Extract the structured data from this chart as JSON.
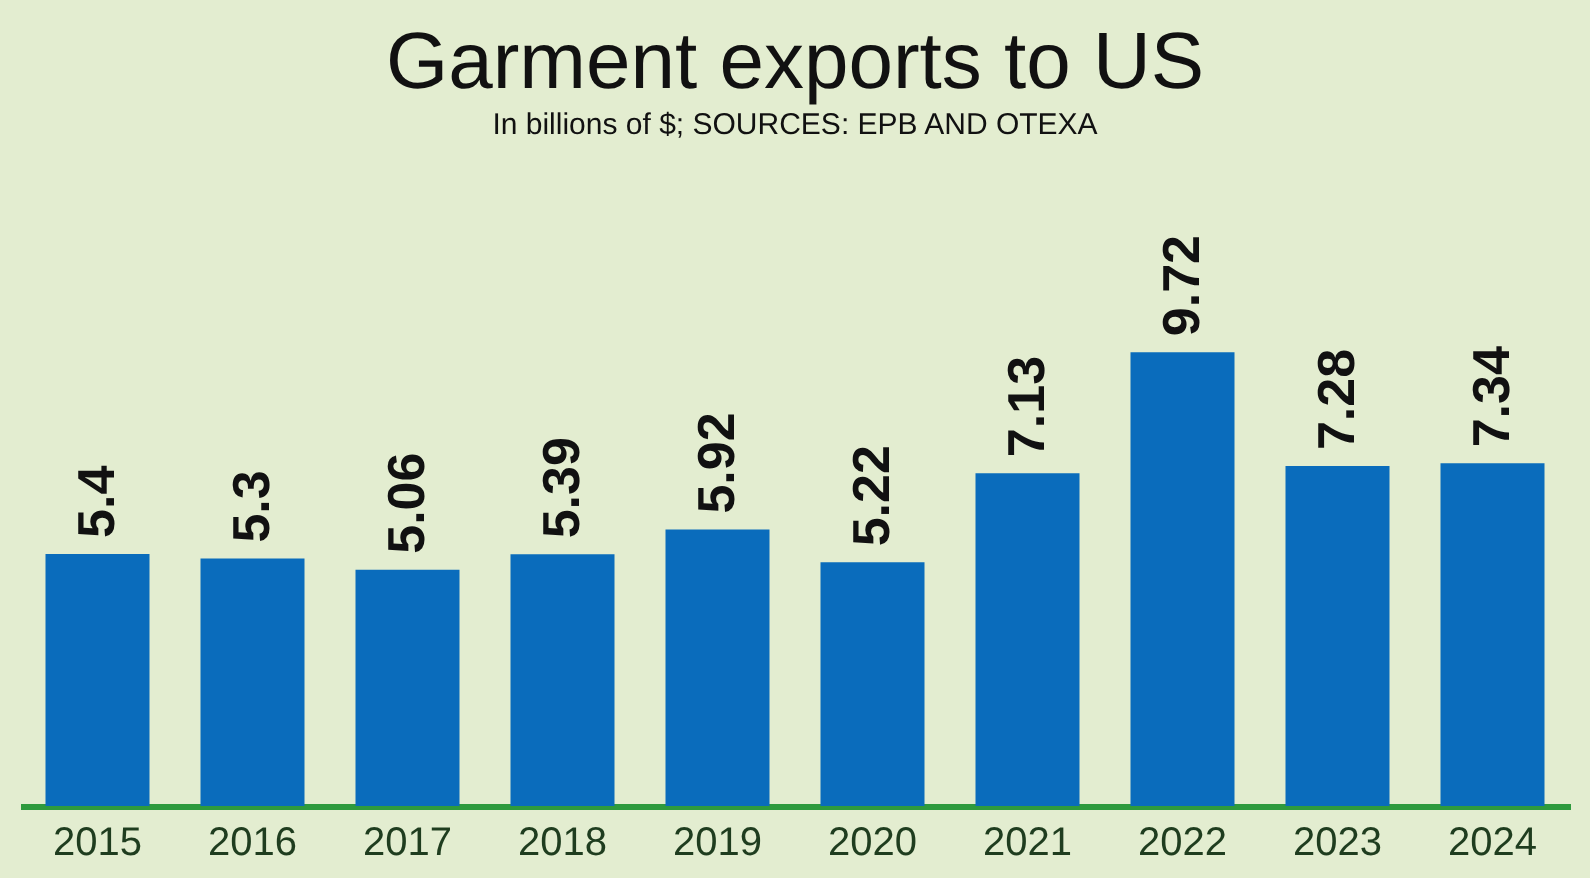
{
  "chart_data": {
    "type": "bar",
    "title": "Garment exports to US",
    "subtitle": "In billions of $; SOURCES: EPB AND OTEXA",
    "categories": [
      "2015",
      "2016",
      "2017",
      "2018",
      "2019",
      "2020",
      "2021",
      "2022",
      "2023",
      "2024"
    ],
    "values": [
      5.4,
      5.3,
      5.06,
      5.39,
      5.92,
      5.22,
      7.13,
      9.72,
      7.28,
      7.34
    ],
    "color": "#0a6cbc",
    "data_labels": true
  }
}
